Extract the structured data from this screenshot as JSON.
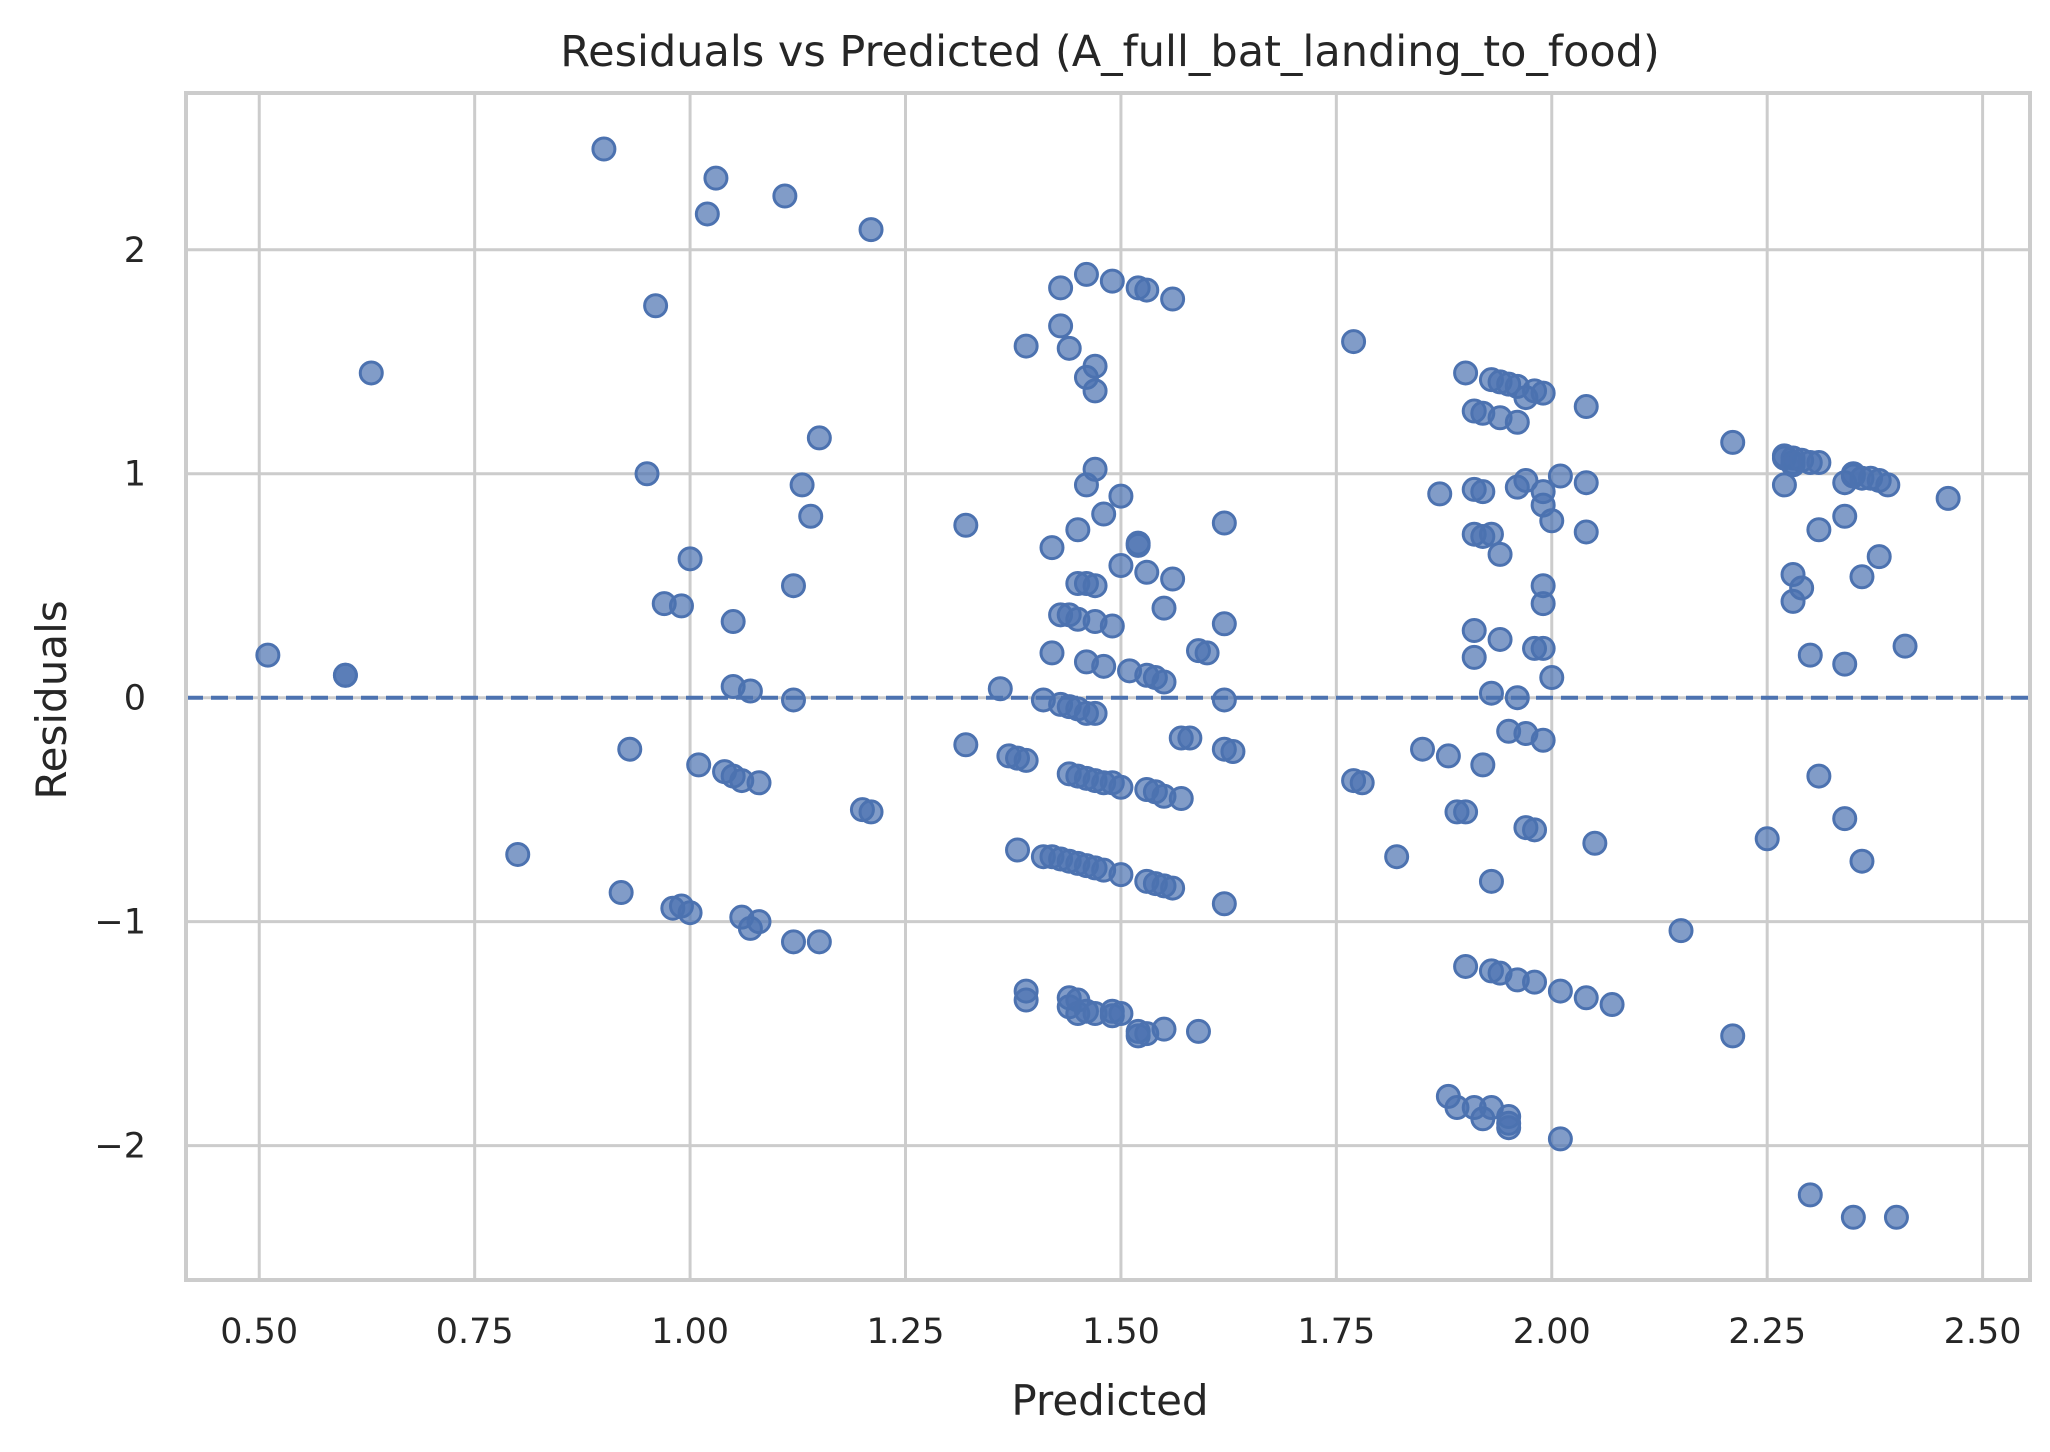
{
  "chart_data": {
    "type": "scatter",
    "title": "Residuals vs Predicted (A_full_bat_landing_to_food)",
    "xlabel": "Predicted",
    "ylabel": "Residuals",
    "xlim": [
      0.415,
      2.555
    ],
    "ylim": [
      -2.6,
      2.7
    ],
    "xticks": [
      0.5,
      0.75,
      1.0,
      1.25,
      1.5,
      1.75,
      2.0,
      2.25,
      2.5
    ],
    "xtick_labels": [
      "0.50",
      "0.75",
      "1.00",
      "1.25",
      "1.50",
      "1.75",
      "2.00",
      "2.25",
      "2.50"
    ],
    "yticks": [
      -2,
      -1,
      0,
      1,
      2
    ],
    "ytick_labels": [
      "−2",
      "−1",
      "0",
      "1",
      "2"
    ],
    "grid": true,
    "reference_line": {
      "y": 0,
      "style": "dashed"
    },
    "color": "#4c72b0",
    "points": [
      [
        0.51,
        0.19
      ],
      [
        0.6,
        0.1
      ],
      [
        0.6,
        0.1
      ],
      [
        0.63,
        1.45
      ],
      [
        0.8,
        -0.7
      ],
      [
        0.9,
        2.45
      ],
      [
        0.92,
        -0.87
      ],
      [
        0.93,
        -0.23
      ],
      [
        0.95,
        1.0
      ],
      [
        0.96,
        1.75
      ],
      [
        0.97,
        0.42
      ],
      [
        0.98,
        -0.94
      ],
      [
        0.99,
        0.41
      ],
      [
        0.99,
        -0.93
      ],
      [
        1.0,
        0.62
      ],
      [
        1.0,
        -0.96
      ],
      [
        1.01,
        -0.3
      ],
      [
        1.02,
        2.16
      ],
      [
        1.03,
        2.32
      ],
      [
        1.04,
        -0.33
      ],
      [
        1.05,
        0.34
      ],
      [
        1.05,
        0.05
      ],
      [
        1.05,
        -0.35
      ],
      [
        1.06,
        -0.37
      ],
      [
        1.06,
        -0.98
      ],
      [
        1.07,
        0.03
      ],
      [
        1.07,
        -1.03
      ],
      [
        1.08,
        -0.38
      ],
      [
        1.08,
        -1.0
      ],
      [
        1.11,
        2.24
      ],
      [
        1.12,
        0.5
      ],
      [
        1.12,
        -0.01
      ],
      [
        1.12,
        -1.09
      ],
      [
        1.13,
        0.95
      ],
      [
        1.14,
        0.81
      ],
      [
        1.15,
        1.16
      ],
      [
        1.15,
        -1.09
      ],
      [
        1.2,
        -0.5
      ],
      [
        1.21,
        -0.51
      ],
      [
        1.21,
        2.09
      ],
      [
        1.32,
        0.77
      ],
      [
        1.32,
        -0.21
      ],
      [
        1.36,
        0.04
      ],
      [
        1.37,
        -0.26
      ],
      [
        1.38,
        -0.27
      ],
      [
        1.38,
        -0.68
      ],
      [
        1.39,
        -0.28
      ],
      [
        1.39,
        1.57
      ],
      [
        1.39,
        -1.31
      ],
      [
        1.39,
        -1.35
      ],
      [
        1.41,
        -0.01
      ],
      [
        1.41,
        -0.71
      ],
      [
        1.42,
        0.67
      ],
      [
        1.42,
        0.2
      ],
      [
        1.42,
        -0.71
      ],
      [
        1.43,
        0.37
      ],
      [
        1.43,
        -0.03
      ],
      [
        1.43,
        -0.72
      ],
      [
        1.43,
        1.83
      ],
      [
        1.43,
        1.66
      ],
      [
        1.44,
        0.37
      ],
      [
        1.44,
        -0.04
      ],
      [
        1.44,
        -0.73
      ],
      [
        1.44,
        1.56
      ],
      [
        1.44,
        -0.34
      ],
      [
        1.44,
        -1.34
      ],
      [
        1.44,
        -1.38
      ],
      [
        1.45,
        0.51
      ],
      [
        1.45,
        0.35
      ],
      [
        1.45,
        -0.05
      ],
      [
        1.45,
        -0.74
      ],
      [
        1.45,
        -0.35
      ],
      [
        1.45,
        0.75
      ],
      [
        1.45,
        -1.35
      ],
      [
        1.45,
        -1.41
      ],
      [
        1.46,
        1.89
      ],
      [
        1.46,
        0.95
      ],
      [
        1.46,
        0.51
      ],
      [
        1.46,
        0.16
      ],
      [
        1.46,
        -0.07
      ],
      [
        1.46,
        -0.36
      ],
      [
        1.46,
        -0.75
      ],
      [
        1.46,
        1.43
      ],
      [
        1.46,
        -1.4
      ],
      [
        1.47,
        1.48
      ],
      [
        1.47,
        1.37
      ],
      [
        1.47,
        1.02
      ],
      [
        1.47,
        0.5
      ],
      [
        1.47,
        0.34
      ],
      [
        1.47,
        -0.07
      ],
      [
        1.47,
        -0.37
      ],
      [
        1.47,
        -0.76
      ],
      [
        1.47,
        -1.41
      ],
      [
        1.48,
        0.82
      ],
      [
        1.48,
        0.14
      ],
      [
        1.48,
        -0.38
      ],
      [
        1.48,
        -0.77
      ],
      [
        1.49,
        1.86
      ],
      [
        1.49,
        0.32
      ],
      [
        1.49,
        -0.38
      ],
      [
        1.49,
        -1.4
      ],
      [
        1.49,
        -1.42
      ],
      [
        1.5,
        0.9
      ],
      [
        1.5,
        0.59
      ],
      [
        1.5,
        -0.4
      ],
      [
        1.5,
        -0.79
      ],
      [
        1.5,
        -1.41
      ],
      [
        1.51,
        0.12
      ],
      [
        1.52,
        1.83
      ],
      [
        1.52,
        0.69
      ],
      [
        1.52,
        0.68
      ],
      [
        1.52,
        -1.49
      ],
      [
        1.52,
        -1.51
      ],
      [
        1.53,
        1.82
      ],
      [
        1.53,
        0.56
      ],
      [
        1.53,
        0.1
      ],
      [
        1.53,
        -0.41
      ],
      [
        1.53,
        -0.82
      ],
      [
        1.53,
        -1.5
      ],
      [
        1.54,
        0.09
      ],
      [
        1.54,
        -0.42
      ],
      [
        1.54,
        -0.83
      ],
      [
        1.55,
        0.07
      ],
      [
        1.55,
        -0.44
      ],
      [
        1.55,
        -0.84
      ],
      [
        1.55,
        -1.48
      ],
      [
        1.55,
        0.4
      ],
      [
        1.56,
        0.53
      ],
      [
        1.56,
        -0.85
      ],
      [
        1.56,
        1.78
      ],
      [
        1.57,
        -0.45
      ],
      [
        1.57,
        -0.18
      ],
      [
        1.58,
        -0.18
      ],
      [
        1.59,
        0.21
      ],
      [
        1.59,
        -1.49
      ],
      [
        1.6,
        0.2
      ],
      [
        1.62,
        0.78
      ],
      [
        1.62,
        0.33
      ],
      [
        1.62,
        -0.01
      ],
      [
        1.62,
        -0.23
      ],
      [
        1.62,
        -0.92
      ],
      [
        1.63,
        -0.24
      ],
      [
        1.77,
        1.59
      ],
      [
        1.77,
        -0.37
      ],
      [
        1.78,
        -0.38
      ],
      [
        1.82,
        -0.71
      ],
      [
        1.85,
        -0.23
      ],
      [
        1.87,
        0.91
      ],
      [
        1.88,
        -0.26
      ],
      [
        1.88,
        -1.78
      ],
      [
        1.89,
        -1.83
      ],
      [
        1.89,
        -0.51
      ],
      [
        1.9,
        -0.51
      ],
      [
        1.9,
        1.45
      ],
      [
        1.9,
        -1.2
      ],
      [
        1.91,
        1.28
      ],
      [
        1.91,
        0.93
      ],
      [
        1.91,
        0.73
      ],
      [
        1.91,
        0.3
      ],
      [
        1.91,
        0.18
      ],
      [
        1.91,
        -1.83
      ],
      [
        1.92,
        -0.3
      ],
      [
        1.92,
        0.92
      ],
      [
        1.92,
        0.72
      ],
      [
        1.92,
        1.27
      ],
      [
        1.92,
        -1.88
      ],
      [
        1.93,
        1.42
      ],
      [
        1.93,
        0.73
      ],
      [
        1.93,
        0.02
      ],
      [
        1.93,
        -0.82
      ],
      [
        1.93,
        -1.22
      ],
      [
        1.93,
        -1.83
      ],
      [
        1.94,
        0.64
      ],
      [
        1.94,
        1.41
      ],
      [
        1.94,
        -1.23
      ],
      [
        1.94,
        1.25
      ],
      [
        1.94,
        0.26
      ],
      [
        1.95,
        1.4
      ],
      [
        1.95,
        -0.15
      ],
      [
        1.95,
        -1.87
      ],
      [
        1.95,
        -1.9
      ],
      [
        1.95,
        -1.92
      ],
      [
        1.96,
        1.23
      ],
      [
        1.96,
        0.0
      ],
      [
        1.96,
        1.39
      ],
      [
        1.96,
        0.94
      ],
      [
        1.96,
        -1.26
      ],
      [
        1.97,
        -0.16
      ],
      [
        1.97,
        -0.58
      ],
      [
        1.97,
        1.34
      ],
      [
        1.97,
        0.97
      ],
      [
        1.98,
        -0.59
      ],
      [
        1.98,
        0.22
      ],
      [
        1.98,
        1.37
      ],
      [
        1.98,
        -1.27
      ],
      [
        1.99,
        1.36
      ],
      [
        1.99,
        0.86
      ],
      [
        1.99,
        0.5
      ],
      [
        1.99,
        0.42
      ],
      [
        1.99,
        0.92
      ],
      [
        1.99,
        0.22
      ],
      [
        1.99,
        -0.19
      ],
      [
        2.0,
        0.79
      ],
      [
        2.0,
        0.09
      ],
      [
        2.01,
        0.99
      ],
      [
        2.01,
        -1.31
      ],
      [
        2.01,
        -1.97
      ],
      [
        2.04,
        1.3
      ],
      [
        2.04,
        0.96
      ],
      [
        2.04,
        0.74
      ],
      [
        2.04,
        -1.34
      ],
      [
        2.05,
        -0.65
      ],
      [
        2.07,
        -1.37
      ],
      [
        2.15,
        -1.04
      ],
      [
        2.21,
        1.14
      ],
      [
        2.21,
        -1.51
      ],
      [
        2.25,
        -0.63
      ],
      [
        2.27,
        1.07
      ],
      [
        2.27,
        0.95
      ],
      [
        2.27,
        1.08
      ],
      [
        2.28,
        1.05
      ],
      [
        2.28,
        1.07
      ],
      [
        2.28,
        1.04
      ],
      [
        2.28,
        0.55
      ],
      [
        2.28,
        0.43
      ],
      [
        2.29,
        0.49
      ],
      [
        2.29,
        1.06
      ],
      [
        2.3,
        1.05
      ],
      [
        2.3,
        0.19
      ],
      [
        2.3,
        -2.22
      ],
      [
        2.31,
        1.05
      ],
      [
        2.31,
        0.75
      ],
      [
        2.31,
        -0.35
      ],
      [
        2.34,
        0.81
      ],
      [
        2.34,
        0.96
      ],
      [
        2.34,
        0.15
      ],
      [
        2.34,
        -0.54
      ],
      [
        2.35,
        0.99
      ],
      [
        2.35,
        -2.32
      ],
      [
        2.35,
        1.0
      ],
      [
        2.36,
        -0.73
      ],
      [
        2.36,
        0.54
      ],
      [
        2.36,
        0.98
      ],
      [
        2.37,
        0.98
      ],
      [
        2.38,
        0.97
      ],
      [
        2.38,
        0.63
      ],
      [
        2.39,
        0.95
      ],
      [
        2.4,
        -2.32
      ],
      [
        2.41,
        0.23
      ],
      [
        2.46,
        0.89
      ]
    ]
  }
}
